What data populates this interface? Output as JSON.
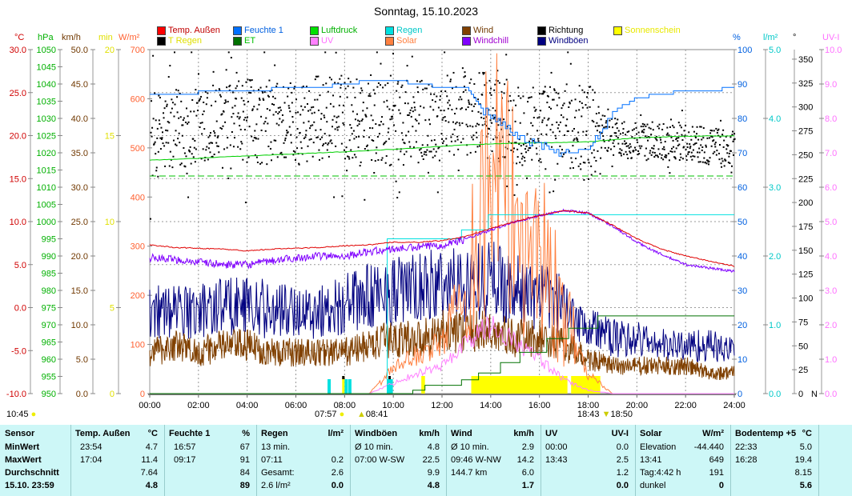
{
  "title": "Sonntag, 15.10.2023",
  "legend": [
    {
      "label": "Temp. Außen",
      "color": "#ff0000",
      "text": "#c00000"
    },
    {
      "label": "Feuchte 1",
      "color": "#0070ff",
      "text": "#0060e0"
    },
    {
      "label": "Luftdruck",
      "color": "#00e000",
      "text": "#00b000"
    },
    {
      "label": "Regen",
      "color": "#00e0e0",
      "text": "#00c8c8"
    },
    {
      "label": "Wind",
      "color": "#804000",
      "text": "#703800"
    },
    {
      "label": "Richtung",
      "color": "#000000",
      "text": "#000000"
    },
    {
      "label": "Sonnenschein",
      "color": "#ffff00",
      "text": "#e8e800"
    },
    {
      "label": "T Regen",
      "color": "#000000",
      "text": "#e0e000"
    },
    {
      "label": "ET",
      "color": "#007000",
      "text": "#00c000"
    },
    {
      "label": "UV",
      "color": "#ff80ff",
      "text": "#ff70ff"
    },
    {
      "label": "Solar",
      "color": "#ff8040",
      "text": "#ff8040"
    },
    {
      "label": "Windchill",
      "color": "#8000ff",
      "text": "#a000d0"
    },
    {
      "label": "Windböen",
      "color": "#000080",
      "text": "#000080"
    }
  ],
  "footer": {
    "left_time": "10:45",
    "sunrise": "07:57",
    "moon1": "08:41",
    "sunset": "18:43",
    "moon2": "18:50"
  },
  "chart_data": {
    "type": "line",
    "title": "Sonntag, 15.10.2023",
    "x_ticks": [
      "00:00",
      "02:00",
      "04:00",
      "06:00",
      "08:00",
      "10:00",
      "12:00",
      "14:00",
      "16:00",
      "18:00",
      "20:00",
      "22:00",
      "24:00"
    ],
    "xlim": [
      0,
      24
    ],
    "grid": true,
    "axes": {
      "temp": {
        "unit": "°C",
        "color": "#d00000",
        "range": [
          -10,
          30
        ],
        "ticks": [
          "30.0",
          "25.0",
          "20.0",
          "15.0",
          "10.0",
          "5.0",
          "0.0",
          "-5.0",
          "-10.0"
        ]
      },
      "press": {
        "unit": "hPa",
        "color": "#00b000",
        "range": [
          950,
          1050
        ],
        "ticks": [
          "1050",
          "1045",
          "1040",
          "1035",
          "1030",
          "1025",
          "1020",
          "1015",
          "1010",
          "1005",
          "1000",
          "995",
          "990",
          "985",
          "980",
          "975",
          "970",
          "965",
          "960",
          "955",
          "950"
        ]
      },
      "wind": {
        "unit": "km/h",
        "color": "#703800",
        "range": [
          0,
          50
        ],
        "ticks": [
          "50.0",
          "45.0",
          "40.0",
          "35.0",
          "30.0",
          "25.0",
          "20.0",
          "15.0",
          "10.0",
          "5.0",
          "0.0"
        ]
      },
      "min": {
        "unit": "min",
        "color": "#e0e000",
        "range": [
          0,
          20
        ],
        "ticks": [
          "20",
          "15",
          "10",
          "5",
          "0"
        ]
      },
      "solar": {
        "unit": "W/m²",
        "color": "#ff6030",
        "range": [
          0,
          700
        ],
        "ticks": [
          "700",
          "600",
          "500",
          "400",
          "300",
          "200",
          "100",
          "0"
        ]
      },
      "hum": {
        "unit": "%",
        "color": "#0060e0",
        "range": [
          0,
          100
        ],
        "ticks": [
          "100",
          "90",
          "80",
          "70",
          "60",
          "50",
          "40",
          "30",
          "20",
          "10",
          "0"
        ]
      },
      "rain": {
        "unit": "l/m²",
        "color": "#00c8c8",
        "range": [
          0,
          5
        ],
        "ticks": [
          "5.0",
          "4.0",
          "3.0",
          "2.0",
          "1.0",
          "0.0"
        ]
      },
      "dir": {
        "unit": "°",
        "color": "#000000",
        "range": [
          0,
          360
        ],
        "ticks": [
          "350",
          "325",
          "300",
          "275",
          "250",
          "225",
          "200",
          "175",
          "150",
          "125",
          "100",
          "75",
          "50",
          "25",
          "0"
        ],
        "zero_label": "N"
      },
      "uv": {
        "unit": "UV-I",
        "color": "#ff70ff",
        "range": [
          0,
          10
        ],
        "ticks": [
          "10.0",
          "9.0",
          "8.0",
          "7.0",
          "6.0",
          "5.0",
          "4.0",
          "3.0",
          "2.0",
          "1.0",
          "0.0"
        ]
      }
    },
    "hours": [
      0,
      1,
      2,
      3,
      4,
      5,
      6,
      7,
      8,
      9,
      10,
      11,
      12,
      13,
      14,
      15,
      16,
      17,
      18,
      19,
      20,
      21,
      22,
      23,
      24
    ],
    "series": [
      {
        "name": "Temp. Außen",
        "axis": "temp",
        "values": [
          7.3,
          7.0,
          6.9,
          6.8,
          6.6,
          6.8,
          6.9,
          7.0,
          7.2,
          7.3,
          7.6,
          7.6,
          7.8,
          8.3,
          9.2,
          10.0,
          10.7,
          11.3,
          11.0,
          9.6,
          8.0,
          6.8,
          6.0,
          5.4,
          4.8
        ]
      },
      {
        "name": "Windchill",
        "axis": "temp",
        "values": [
          5.8,
          5.6,
          5.3,
          5.0,
          5.0,
          5.4,
          5.8,
          6.0,
          6.0,
          6.5,
          6.8,
          7.0,
          7.3,
          8.0,
          9.0,
          10.0,
          10.7,
          11.3,
          11.0,
          9.5,
          7.6,
          6.2,
          5.0,
          4.6,
          4.2
        ]
      },
      {
        "name": "Feuchte 1",
        "axis": "hum",
        "values": [
          87,
          87,
          87.5,
          88,
          88,
          88.5,
          88.5,
          89,
          90,
          91,
          91,
          90,
          89,
          88.5,
          80,
          76,
          72,
          70,
          71,
          82,
          86,
          87,
          88,
          88,
          89
        ]
      },
      {
        "name": "Luftdruck",
        "axis": "press",
        "values": [
          1017.9,
          1018.1,
          1018.4,
          1018.8,
          1019.1,
          1019.4,
          1019.7,
          1020.0,
          1020.3,
          1020.7,
          1021.0,
          1021.4,
          1021.9,
          1022.3,
          1022.6,
          1022.8,
          1022.9,
          1023.0,
          1023.2,
          1023.8,
          1024.3,
          1024.6,
          1024.8,
          1024.9,
          1024.9
        ]
      },
      {
        "name": "Wind",
        "axis": "wind",
        "values": [
          6,
          7,
          6,
          7,
          7,
          6,
          6,
          6,
          6,
          7,
          8,
          8,
          9,
          9,
          9,
          8,
          8,
          7,
          5,
          4,
          4,
          4,
          4,
          3,
          3
        ]
      },
      {
        "name": "Windböen",
        "axis": "wind",
        "values": [
          12,
          12,
          12,
          13,
          13,
          12,
          12,
          12,
          13,
          14,
          15,
          15,
          16,
          16,
          17,
          15,
          14,
          13,
          10,
          8,
          8,
          7,
          7,
          7,
          6
        ]
      },
      {
        "name": "Richtung",
        "axis": "dir",
        "type": "scatter",
        "values": [
          270,
          275,
          275,
          280,
          285,
          285,
          285,
          290,
          290,
          285,
          280,
          285,
          290,
          295,
          290,
          285,
          280,
          280,
          280,
          270,
          265,
          265,
          265,
          260,
          255
        ]
      },
      {
        "name": "Solar",
        "axis": "solar",
        "values": [
          0,
          0,
          0,
          0,
          0,
          0,
          0,
          0,
          0,
          0,
          50,
          80,
          100,
          250,
          450,
          350,
          300,
          150,
          40,
          0,
          0,
          0,
          0,
          0,
          0
        ]
      },
      {
        "name": "UV",
        "axis": "uv",
        "values": [
          0,
          0,
          0,
          0,
          0,
          0,
          0,
          0,
          0,
          0,
          0.3,
          0.6,
          0.8,
          1.5,
          2.0,
          1.5,
          1.0,
          0.4,
          0.1,
          0,
          0,
          0,
          0,
          0,
          0
        ]
      }
    ],
    "regen_steps": [
      [
        0,
        0
      ],
      [
        9.75,
        2.25
      ],
      [
        12.8,
        2.38
      ],
      [
        13.9,
        2.6
      ],
      [
        24,
        2.6
      ]
    ],
    "et_steps": [
      [
        0,
        0
      ],
      [
        10.8,
        0.05
      ],
      [
        11.3,
        0.12
      ],
      [
        12.8,
        0.2
      ],
      [
        13.5,
        0.3
      ],
      [
        14.4,
        0.45
      ],
      [
        15.2,
        0.6
      ],
      [
        16.3,
        0.8
      ],
      [
        17.2,
        0.95
      ],
      [
        18.4,
        1.13
      ],
      [
        24,
        1.13
      ]
    ],
    "sonnenschein_intervals": [
      [
        7.9,
        8.0
      ],
      [
        11.15,
        11.3
      ],
      [
        13.2,
        17.15
      ],
      [
        17.3,
        18.5
      ]
    ],
    "regen_bars": [
      7.3,
      8.0,
      8.15,
      9.75,
      9.85
    ],
    "t_regen_marks": [
      7.9,
      9.8
    ],
    "reference_pressure": 1013.25
  },
  "table": {
    "columns": [
      {
        "head": "Sensor",
        "unit": "",
        "rows": [
          [
            "MinWert",
            ""
          ],
          [
            "MaxWert",
            ""
          ],
          [
            "Durchschnitt",
            ""
          ],
          [
            "15.10. 23:59",
            ""
          ]
        ]
      },
      {
        "head": "Temp. Außen",
        "unit": "°C",
        "rows": [
          [
            "23:54",
            "4.7"
          ],
          [
            "17:04",
            "11.4"
          ],
          [
            "",
            "7.64"
          ],
          [
            "",
            "4.8"
          ]
        ]
      },
      {
        "head": "Feuchte 1",
        "unit": "%",
        "rows": [
          [
            "16:57",
            "67"
          ],
          [
            "09:17",
            "91"
          ],
          [
            "",
            "84"
          ],
          [
            "",
            "89"
          ]
        ]
      },
      {
        "head": "Regen",
        "unit": "l/m²",
        "rows": [
          [
            "13 min.",
            ""
          ],
          [
            "07:11",
            "0.2"
          ],
          [
            "Gesamt:",
            "2.6"
          ],
          [
            "2.6 l/m²",
            "0.0"
          ]
        ]
      },
      {
        "head": "Windböen",
        "unit": "km/h",
        "rows": [
          [
            "Ø 10 min.",
            "4.8"
          ],
          [
            "07:00   W-SW",
            "22.5"
          ],
          [
            "",
            "9.9"
          ],
          [
            "",
            "4.8"
          ]
        ]
      },
      {
        "head": "Wind",
        "unit": "km/h",
        "rows": [
          [
            "Ø 10 min.",
            "2.9"
          ],
          [
            "09:46   W-NW",
            "14.2"
          ],
          [
            "144.7 km",
            "6.0"
          ],
          [
            "",
            "1.7"
          ]
        ]
      },
      {
        "head": "UV",
        "unit": "UV-I",
        "rows": [
          [
            "00:00",
            "0.0"
          ],
          [
            "13:43",
            "2.5"
          ],
          [
            "",
            "1.2"
          ],
          [
            "",
            "0.0"
          ]
        ]
      },
      {
        "head": "Solar",
        "unit": "W/m²",
        "rows": [
          [
            "Elevation",
            "-44.440"
          ],
          [
            "13:41",
            "649"
          ],
          [
            "Tag:4:42 h",
            "191"
          ],
          [
            "dunkel",
            "0"
          ]
        ]
      },
      {
        "head": "Bodentemp +5",
        "unit": "°C",
        "rows": [
          [
            "22:33",
            "5.0"
          ],
          [
            "16:28",
            "19.4"
          ],
          [
            "",
            "8.15"
          ],
          [
            "",
            "5.6"
          ]
        ]
      }
    ]
  }
}
